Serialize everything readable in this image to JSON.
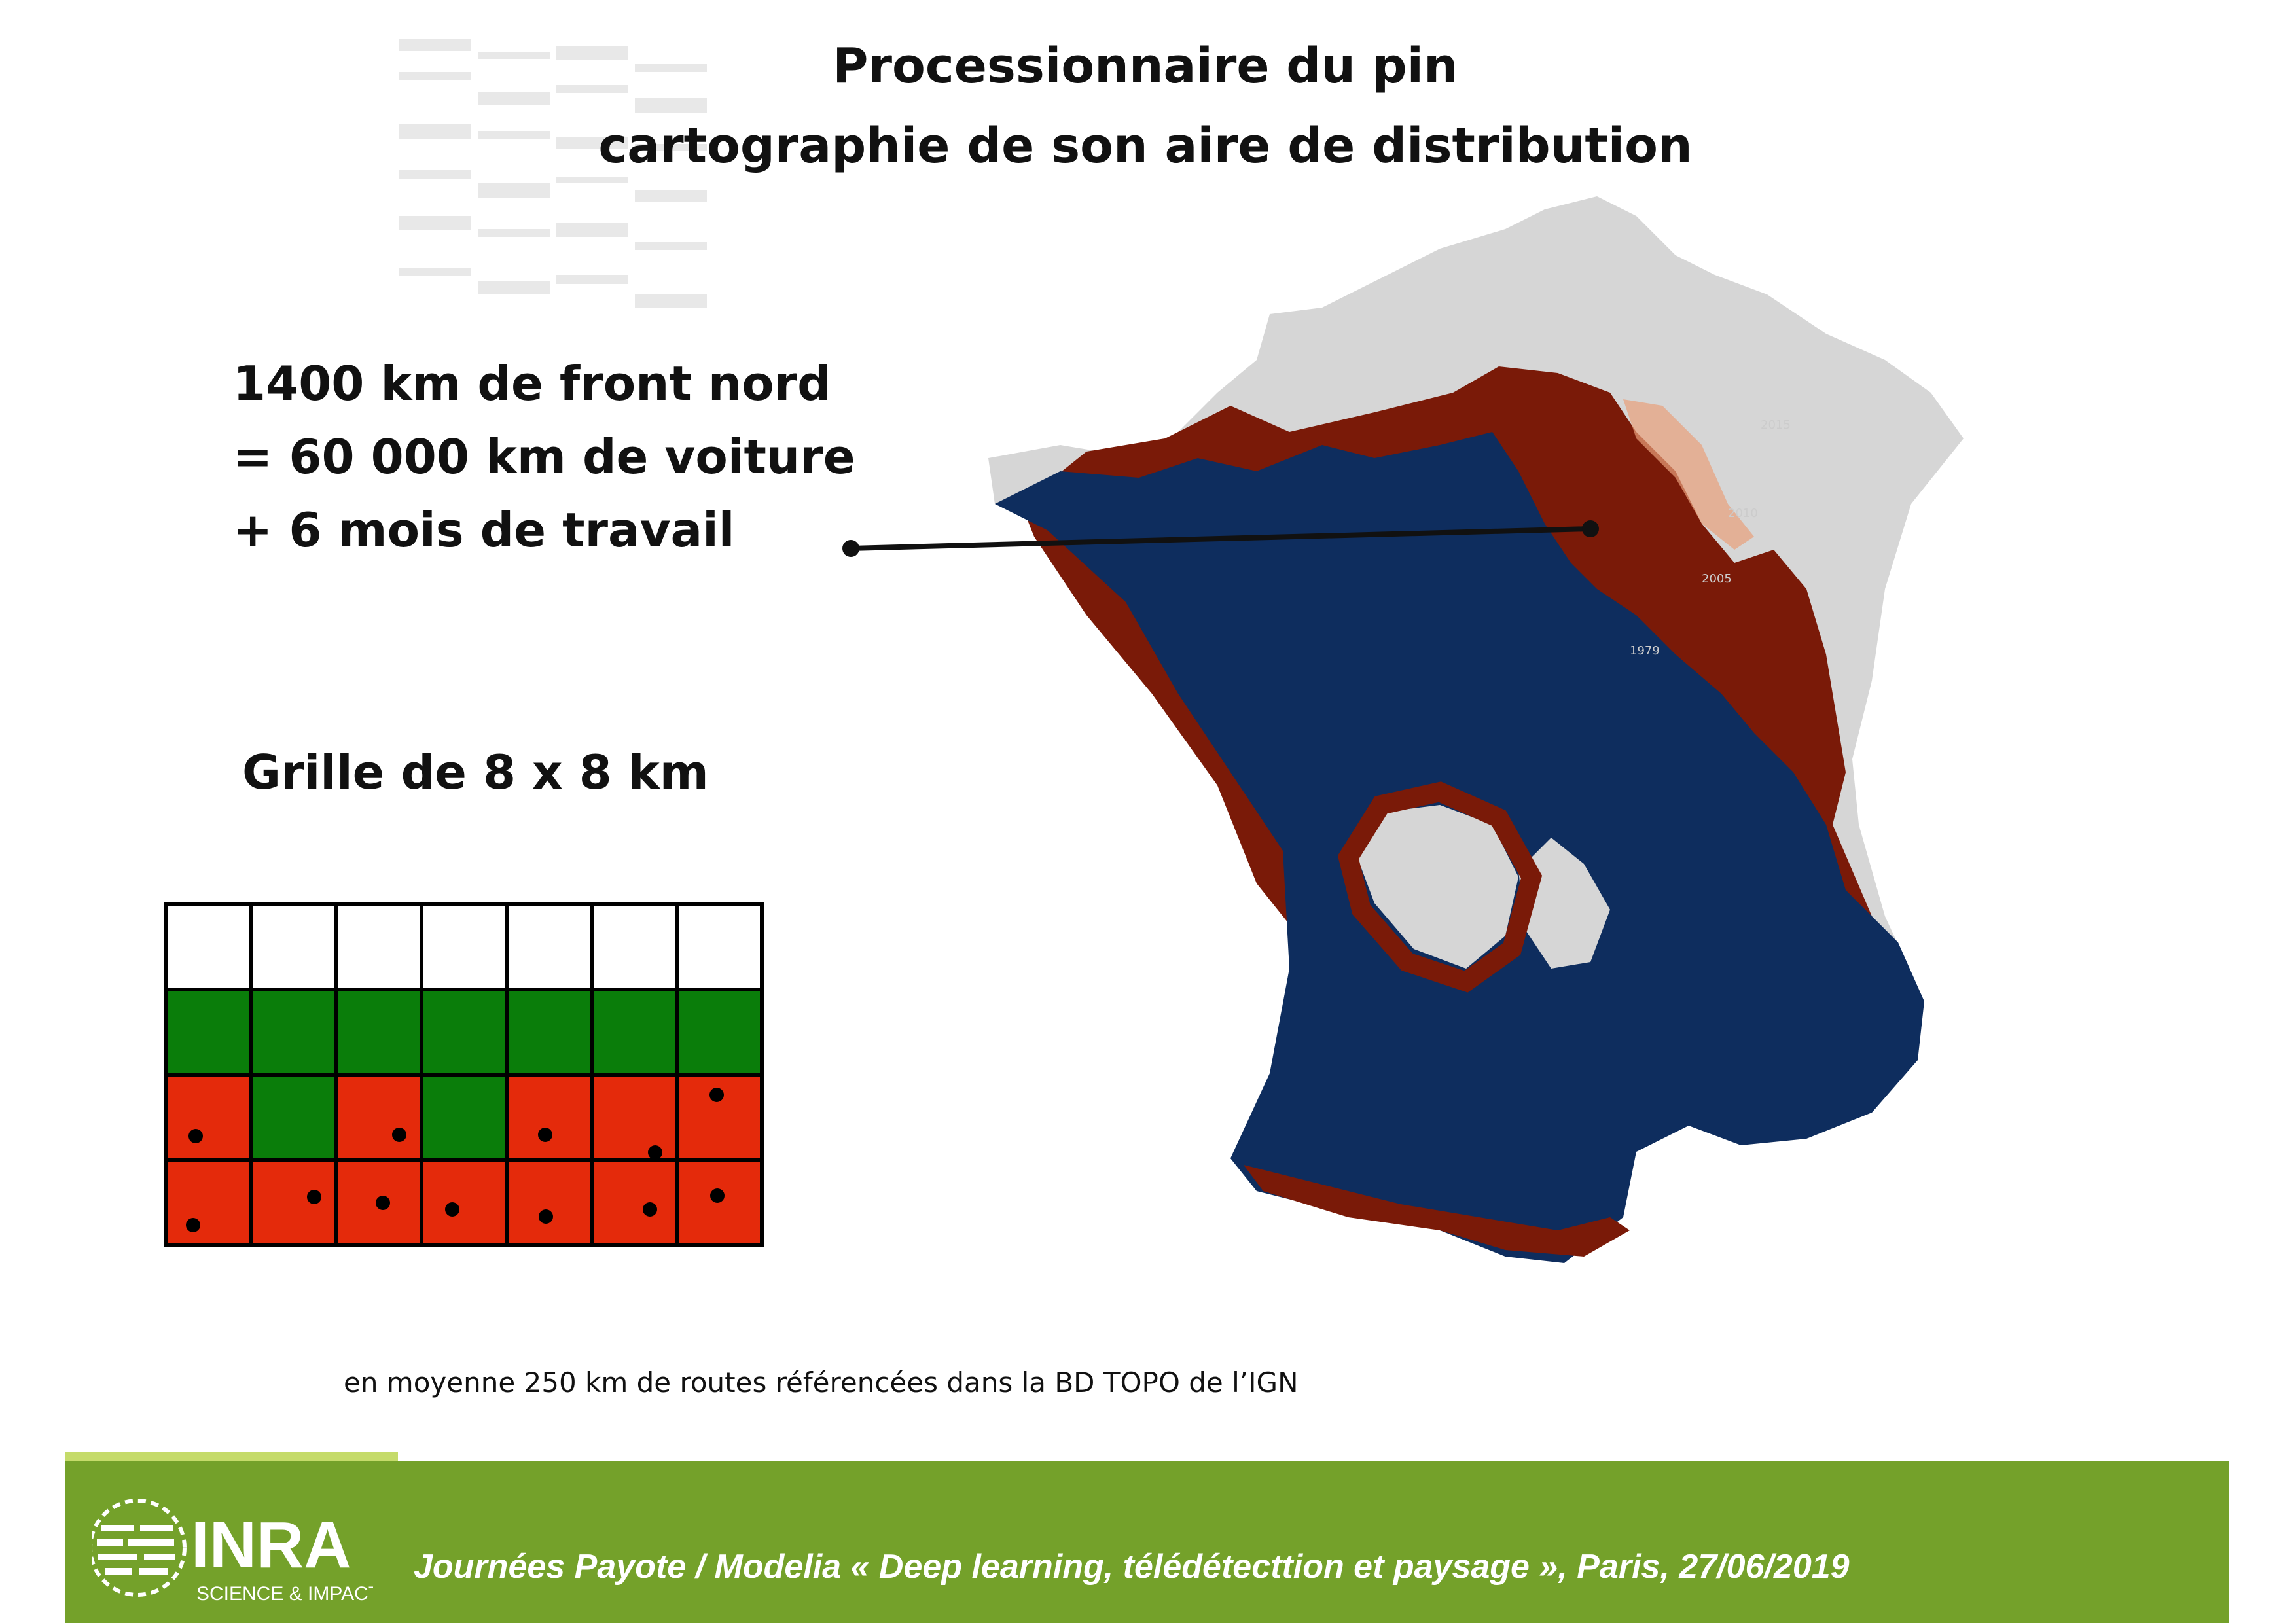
{
  "title": {
    "line1": "Processionnaire du pin",
    "line2": "cartographie de son aire de distribution"
  },
  "stats": {
    "line1": "1400 km de front nord",
    "line2": "= 60 000 km de voiture",
    "line3": "+ 6 mois de travail"
  },
  "grid": {
    "title": "Grille de 8 x 8 km",
    "rows": [
      [
        "white",
        "white",
        "white",
        "white",
        "white",
        "white",
        "white"
      ],
      [
        "green",
        "green",
        "green",
        "green",
        "green",
        "green",
        "green"
      ],
      [
        "red",
        "green",
        "red",
        "green",
        "red",
        "red",
        "red"
      ],
      [
        "red",
        "red",
        "red",
        "red",
        "red",
        "red",
        "red"
      ]
    ]
  },
  "map": {
    "year_labels": [
      "2015",
      "2010",
      "2005",
      "1979"
    ]
  },
  "note": "en moyenne 250 km de routes référencées dans la BD TOPO de l’IGN",
  "logo": {
    "name": "INRA",
    "tagline": "SCIENCE & IMPACT"
  },
  "footer": {
    "text": "Journées Payote / Modelia « Deep learning, télédétecttion et paysage », Paris, 27/06/2019"
  },
  "colors": {
    "footer_green": "#74A12A",
    "grid_green": "#0A7D0A",
    "grid_red": "#E42A0B",
    "map_blue": "#0E2D5E",
    "map_front": "#7A1A08",
    "map_grey": "#D6D6D6"
  }
}
